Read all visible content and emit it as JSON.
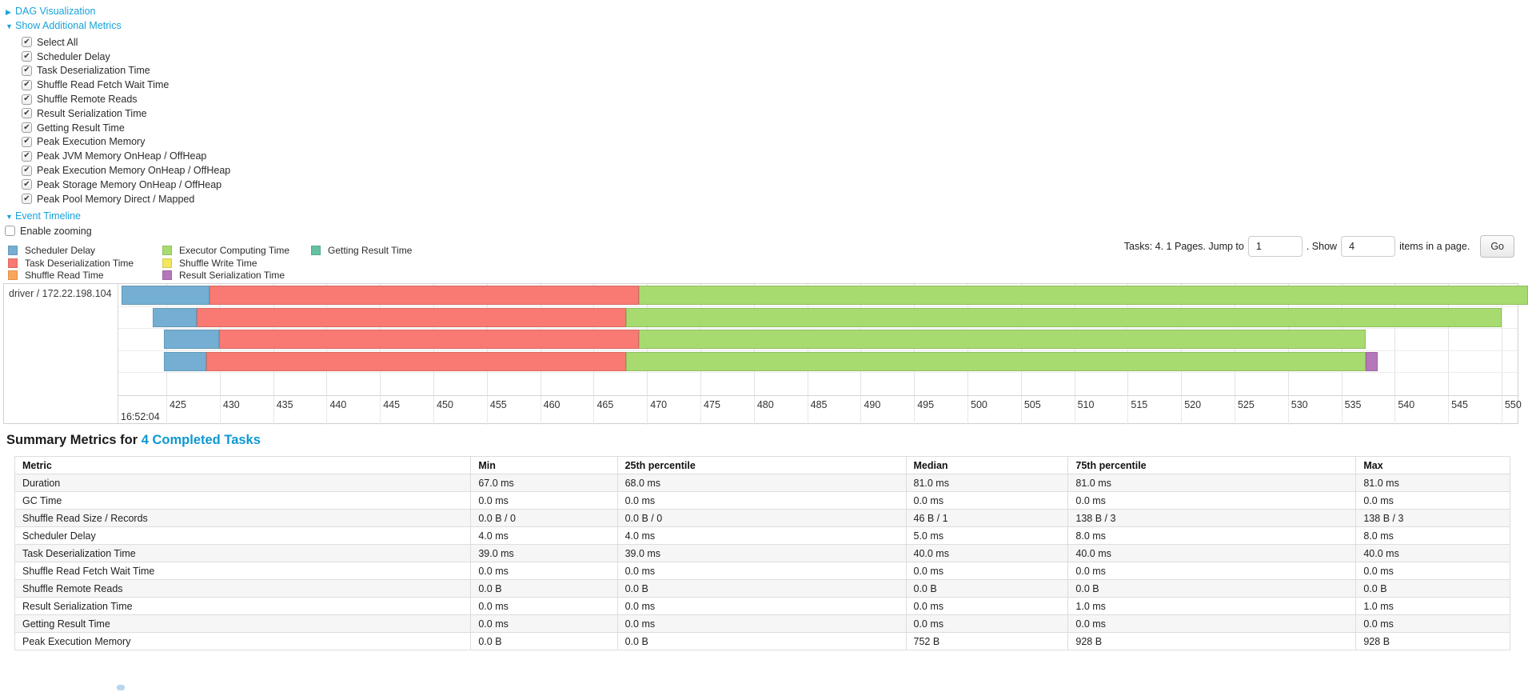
{
  "controls": {
    "dag": {
      "label": "DAG Visualization"
    },
    "additional_metrics": {
      "label": "Show Additional Metrics"
    },
    "metric_checkboxes": [
      {
        "label": "Select All",
        "checked": true
      },
      {
        "label": "Scheduler Delay",
        "checked": true
      },
      {
        "label": "Task Deserialization Time",
        "checked": true
      },
      {
        "label": "Shuffle Read Fetch Wait Time",
        "checked": true
      },
      {
        "label": "Shuffle Remote Reads",
        "checked": true
      },
      {
        "label": "Result Serialization Time",
        "checked": true
      },
      {
        "label": "Getting Result Time",
        "checked": true
      },
      {
        "label": "Peak Execution Memory",
        "checked": true
      },
      {
        "label": "Peak JVM Memory OnHeap / OffHeap",
        "checked": true
      },
      {
        "label": "Peak Execution Memory OnHeap / OffHeap",
        "checked": true
      },
      {
        "label": "Peak Storage Memory OnHeap / OffHeap",
        "checked": true
      },
      {
        "label": "Peak Pool Memory Direct / Mapped",
        "checked": true
      }
    ],
    "event_timeline": {
      "label": "Event Timeline"
    },
    "enable_zooming": {
      "label": "Enable zooming",
      "checked": false
    }
  },
  "legend": {
    "columns": [
      [
        {
          "label": "Scheduler Delay",
          "color": "#74AFD3"
        },
        {
          "label": "Task Deserialization Time",
          "color": "#F87A72"
        },
        {
          "label": "Shuffle Read Time",
          "color": "#FBA65C"
        }
      ],
      [
        {
          "label": "Executor Computing Time",
          "color": "#A7DB70"
        },
        {
          "label": "Shuffle Write Time",
          "color": "#F3E65F"
        },
        {
          "label": "Result Serialization Time",
          "color": "#B577B9"
        }
      ],
      [
        {
          "label": "Getting Result Time",
          "color": "#64C2A3"
        }
      ]
    ]
  },
  "pagination": {
    "prefix": "Tasks: 4. 1 Pages. Jump to",
    "jump_value": "1",
    "mid": ". Show",
    "show_value": "4",
    "suffix": "items in a page.",
    "go": "Go"
  },
  "chart_data": {
    "type": "timeline",
    "executor_label": "driver / 172.22.198.104",
    "axis": {
      "min": 420.5,
      "max": 551.5,
      "ticks": [
        425,
        430,
        435,
        440,
        445,
        450,
        455,
        460,
        465,
        470,
        475,
        480,
        485,
        490,
        495,
        500,
        505,
        510,
        515,
        520,
        525,
        530,
        535,
        540,
        545,
        550
      ],
      "major_label": "16:52:04"
    },
    "segment_colors": {
      "scheduler_delay": "#74AFD3",
      "task_deserialization": "#F87A72",
      "shuffle_read": "#FBA65C",
      "executor_computing": "#A7DB70",
      "shuffle_write": "#F3E65F",
      "result_serialization": "#B577B9",
      "getting_result": "#64C2A3"
    },
    "tasks": [
      {
        "segments": [
          {
            "type": "scheduler_delay",
            "start": 420.8,
            "end": 429.0
          },
          {
            "type": "task_deserialization",
            "start": 429.0,
            "end": 469.2
          },
          {
            "type": "executor_computing",
            "start": 469.2,
            "end": 552.5
          }
        ]
      },
      {
        "segments": [
          {
            "type": "scheduler_delay",
            "start": 423.7,
            "end": 427.8
          },
          {
            "type": "task_deserialization",
            "start": 427.8,
            "end": 468.0
          },
          {
            "type": "executor_computing",
            "start": 468.0,
            "end": 550.0
          }
        ]
      },
      {
        "segments": [
          {
            "type": "scheduler_delay",
            "start": 424.8,
            "end": 429.9
          },
          {
            "type": "task_deserialization",
            "start": 429.9,
            "end": 469.2
          },
          {
            "type": "executor_computing",
            "start": 469.2,
            "end": 537.3
          }
        ]
      },
      {
        "segments": [
          {
            "type": "scheduler_delay",
            "start": 424.8,
            "end": 428.7
          },
          {
            "type": "task_deserialization",
            "start": 428.7,
            "end": 468.0
          },
          {
            "type": "executor_computing",
            "start": 468.0,
            "end": 537.3
          },
          {
            "type": "result_serialization",
            "start": 537.3,
            "end": 538.4
          }
        ]
      }
    ]
  },
  "summary_metrics": {
    "title_prefix": "Summary Metrics for ",
    "title_link": "4 Completed Tasks",
    "headers": [
      "Metric",
      "Min",
      "25th percentile",
      "Median",
      "75th percentile",
      "Max"
    ],
    "rows": [
      [
        "Duration",
        "67.0 ms",
        "68.0 ms",
        "81.0 ms",
        "81.0 ms",
        "81.0 ms"
      ],
      [
        "GC Time",
        "0.0 ms",
        "0.0 ms",
        "0.0 ms",
        "0.0 ms",
        "0.0 ms"
      ],
      [
        "Shuffle Read Size / Records",
        "0.0 B / 0",
        "0.0 B / 0",
        "46 B / 1",
        "138 B / 3",
        "138 B / 3"
      ],
      [
        "Scheduler Delay",
        "4.0 ms",
        "4.0 ms",
        "5.0 ms",
        "8.0 ms",
        "8.0 ms"
      ],
      [
        "Task Deserialization Time",
        "39.0 ms",
        "39.0 ms",
        "40.0 ms",
        "40.0 ms",
        "40.0 ms"
      ],
      [
        "Shuffle Read Fetch Wait Time",
        "0.0 ms",
        "0.0 ms",
        "0.0 ms",
        "0.0 ms",
        "0.0 ms"
      ],
      [
        "Shuffle Remote Reads",
        "0.0 B",
        "0.0 B",
        "0.0 B",
        "0.0 B",
        "0.0 B"
      ],
      [
        "Result Serialization Time",
        "0.0 ms",
        "0.0 ms",
        "0.0 ms",
        "1.0 ms",
        "1.0 ms"
      ],
      [
        "Getting Result Time",
        "0.0 ms",
        "0.0 ms",
        "0.0 ms",
        "0.0 ms",
        "0.0 ms"
      ],
      [
        "Peak Execution Memory",
        "0.0 B",
        "0.0 B",
        "752 B",
        "928 B",
        "928 B"
      ]
    ]
  }
}
